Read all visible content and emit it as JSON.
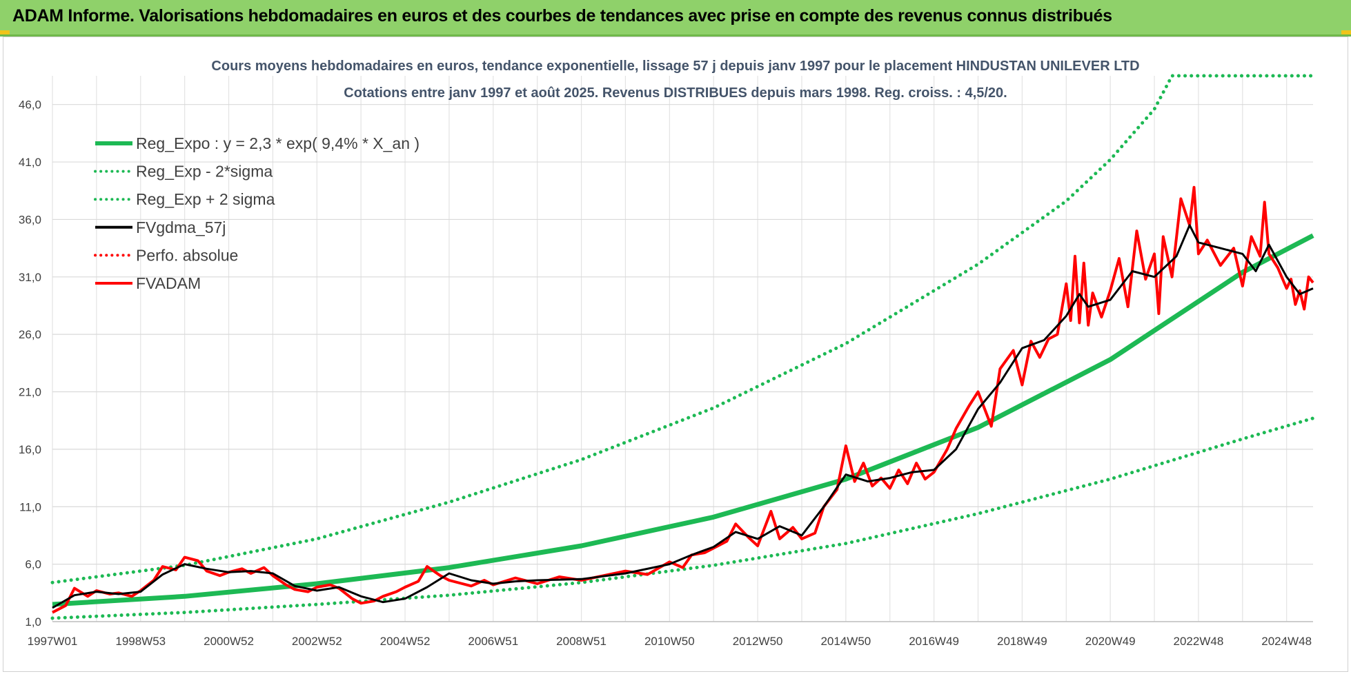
{
  "header": {
    "banner_title": "ADAM Informe. Valorisations hebdomadaires en euros et des courbes de tendances avec prise en compte des revenus connus distribués"
  },
  "chart_data": {
    "type": "line",
    "title": "Cours moyens hebdomadaires en euros, tendance exponentielle, lissage 57 j depuis janv 1997 pour le placement HINDUSTAN UNILEVER LTD",
    "subtitle": "Cotations entre janv 1997 et août 2025. Revenus DISTRIBUES depuis mars 1998. Reg. croiss. : 4,5/20.",
    "xlabel": "",
    "ylabel": "",
    "x_range": [
      1997.0,
      2025.6
    ],
    "ylim": [
      1.0,
      48.5
    ],
    "y_ticks": [
      "1,0",
      "6,0",
      "11,0",
      "16,0",
      "21,0",
      "26,0",
      "31,0",
      "36,0",
      "41,0",
      "46,0"
    ],
    "y_tick_values": [
      1,
      6,
      11,
      16,
      21,
      26,
      31,
      36,
      41,
      46
    ],
    "x_ticks": [
      {
        "label": "1997W01",
        "x": 1997.0
      },
      {
        "label": "1998W53",
        "x": 1999.0
      },
      {
        "label": "2000W52",
        "x": 2001.0
      },
      {
        "label": "2002W52",
        "x": 2003.0
      },
      {
        "label": "2004W52",
        "x": 2005.0
      },
      {
        "label": "2006W51",
        "x": 2007.0
      },
      {
        "label": "2008W51",
        "x": 2009.0
      },
      {
        "label": "2010W50",
        "x": 2011.0
      },
      {
        "label": "2012W50",
        "x": 2013.0
      },
      {
        "label": "2014W50",
        "x": 2015.0
      },
      {
        "label": "2016W49",
        "x": 2017.0
      },
      {
        "label": "2018W49",
        "x": 2019.0
      },
      {
        "label": "2020W49",
        "x": 2021.0
      },
      {
        "label": "2022W48",
        "x": 2023.0
      },
      {
        "label": "2024W48",
        "x": 2025.0
      }
    ],
    "grid": true,
    "legend_position": "top-left",
    "series": [
      {
        "name": "Reg_Expo : y = 2,3 * exp( 9,4% *  X_an )",
        "color": "#1db954",
        "style": "solid",
        "x": [
          1997.0,
          2000.0,
          2003.0,
          2006.0,
          2009.0,
          2012.0,
          2015.0,
          2018.0,
          2021.0,
          2024.0,
          2025.6
        ],
        "y": [
          2.5,
          3.2,
          4.3,
          5.7,
          7.6,
          10.1,
          13.4,
          17.9,
          23.8,
          31.4,
          34.6
        ]
      },
      {
        "name": "Reg_Exp - 2*sigma",
        "color": "#1db954",
        "style": "dotted",
        "x": [
          1997.0,
          2000.0,
          2003.0,
          2006.0,
          2009.0,
          2012.0,
          2015.0,
          2018.0,
          2021.0,
          2024.0,
          2025.6
        ],
        "y": [
          1.3,
          1.8,
          2.5,
          3.3,
          4.4,
          5.9,
          7.8,
          10.4,
          13.4,
          16.9,
          18.7
        ]
      },
      {
        "name": "Reg_Exp + 2 sigma",
        "color": "#1db954",
        "style": "dotted",
        "x": [
          1997.0,
          2000.0,
          2003.0,
          2006.0,
          2009.0,
          2012.0,
          2015.0,
          2018.0,
          2020.0,
          2021.0,
          2022.0,
          2022.4,
          2023.0,
          2024.0,
          2025.6
        ],
        "y": [
          4.4,
          5.9,
          8.2,
          11.4,
          15.1,
          19.6,
          25.2,
          32.1,
          37.6,
          41.2,
          45.6,
          48.5,
          48.5,
          48.5,
          48.5
        ]
      },
      {
        "name": "FVgdma_57j",
        "color": "#000000",
        "style": "solid",
        "x": [
          1997.0,
          1997.5,
          1998.0,
          1998.5,
          1999.0,
          1999.5,
          2000.0,
          2000.5,
          2001.0,
          2001.5,
          2002.0,
          2002.5,
          2003.0,
          2003.5,
          2004.0,
          2004.5,
          2005.0,
          2005.5,
          2006.0,
          2006.5,
          2007.0,
          2007.5,
          2008.0,
          2009.0,
          2010.0,
          2011.0,
          2011.5,
          2012.0,
          2012.5,
          2013.0,
          2013.5,
          2014.0,
          2014.5,
          2015.0,
          2015.5,
          2016.0,
          2016.5,
          2017.0,
          2017.5,
          2018.0,
          2018.5,
          2019.0,
          2019.5,
          2020.0,
          2020.3,
          2020.5,
          2021.0,
          2021.5,
          2022.0,
          2022.5,
          2022.8,
          2023.0,
          2023.5,
          2024.0,
          2024.3,
          2024.6,
          2025.0,
          2025.3,
          2025.6
        ],
        "y": [
          2.2,
          3.3,
          3.6,
          3.4,
          3.6,
          5.1,
          6.0,
          5.6,
          5.3,
          5.4,
          5.2,
          4.1,
          3.7,
          4.0,
          3.2,
          2.7,
          3.0,
          4.0,
          5.2,
          4.6,
          4.3,
          4.5,
          4.6,
          4.7,
          5.2,
          6.0,
          6.8,
          7.5,
          8.8,
          8.2,
          9.3,
          8.5,
          11.0,
          13.8,
          13.2,
          13.5,
          14.0,
          14.2,
          16.0,
          19.5,
          21.8,
          24.8,
          25.5,
          27.6,
          29.5,
          28.4,
          29.0,
          31.5,
          31.0,
          32.8,
          35.5,
          34.0,
          33.5,
          33.0,
          31.5,
          33.8,
          31.0,
          29.5,
          30.0
        ]
      },
      {
        "name": "Perfo. absolue",
        "color": "#ff0000",
        "style": "dotted",
        "x": [],
        "y": []
      },
      {
        "name": "FVADAM",
        "color": "#ff0000",
        "style": "solid",
        "x": [
          1997.0,
          1997.3,
          1997.5,
          1997.8,
          1998.0,
          1998.3,
          1998.5,
          1998.8,
          1999.0,
          1999.3,
          1999.5,
          1999.8,
          2000.0,
          2000.3,
          2000.5,
          2000.8,
          2001.0,
          2001.3,
          2001.5,
          2001.8,
          2002.0,
          2002.3,
          2002.5,
          2002.8,
          2003.0,
          2003.3,
          2003.5,
          2003.8,
          2004.0,
          2004.3,
          2004.5,
          2004.8,
          2005.0,
          2005.3,
          2005.5,
          2005.8,
          2006.0,
          2006.3,
          2006.5,
          2006.8,
          2007.0,
          2007.5,
          2008.0,
          2008.5,
          2009.0,
          2009.5,
          2010.0,
          2010.5,
          2011.0,
          2011.3,
          2011.5,
          2011.8,
          2012.0,
          2012.3,
          2012.5,
          2012.8,
          2013.0,
          2013.3,
          2013.5,
          2013.8,
          2014.0,
          2014.3,
          2014.5,
          2014.8,
          2015.0,
          2015.2,
          2015.4,
          2015.6,
          2015.8,
          2016.0,
          2016.2,
          2016.4,
          2016.6,
          2016.8,
          2017.0,
          2017.3,
          2017.5,
          2017.8,
          2018.0,
          2018.3,
          2018.5,
          2018.8,
          2019.0,
          2019.2,
          2019.4,
          2019.6,
          2019.8,
          2020.0,
          2020.1,
          2020.2,
          2020.3,
          2020.4,
          2020.5,
          2020.6,
          2020.8,
          2021.0,
          2021.2,
          2021.4,
          2021.6,
          2021.8,
          2022.0,
          2022.1,
          2022.2,
          2022.4,
          2022.6,
          2022.8,
          2022.9,
          2023.0,
          2023.2,
          2023.5,
          2023.8,
          2024.0,
          2024.2,
          2024.4,
          2024.5,
          2024.6,
          2024.8,
          2025.0,
          2025.1,
          2025.2,
          2025.3,
          2025.4,
          2025.5,
          2025.6
        ],
        "y": [
          1.8,
          2.4,
          3.9,
          3.2,
          3.7,
          3.4,
          3.5,
          3.2,
          3.7,
          4.6,
          5.8,
          5.5,
          6.6,
          6.3,
          5.4,
          5.0,
          5.3,
          5.6,
          5.2,
          5.7,
          5.0,
          4.2,
          3.8,
          3.6,
          4.0,
          4.2,
          3.9,
          3.0,
          2.6,
          2.8,
          3.2,
          3.6,
          4.0,
          4.5,
          5.8,
          5.0,
          4.6,
          4.3,
          4.1,
          4.6,
          4.2,
          4.8,
          4.3,
          4.9,
          4.6,
          5.0,
          5.4,
          5.1,
          6.2,
          5.7,
          6.8,
          7.0,
          7.4,
          8.0,
          9.5,
          8.3,
          7.6,
          10.6,
          8.2,
          9.2,
          8.2,
          8.7,
          11.0,
          12.5,
          16.3,
          13.2,
          14.8,
          12.8,
          13.5,
          12.6,
          14.2,
          13.0,
          14.8,
          13.4,
          14.0,
          16.0,
          17.8,
          19.8,
          21.0,
          18.0,
          23.0,
          24.6,
          21.6,
          25.4,
          24.0,
          25.6,
          26.0,
          30.4,
          27.2,
          32.8,
          27.0,
          32.2,
          26.8,
          29.6,
          27.5,
          29.8,
          32.6,
          28.4,
          35.0,
          30.8,
          33.0,
          27.8,
          34.5,
          31.0,
          37.8,
          35.5,
          38.8,
          33.0,
          34.2,
          32.0,
          33.5,
          30.2,
          34.5,
          32.8,
          37.5,
          33.0,
          31.8,
          30.0,
          30.8,
          28.6,
          29.8,
          28.2,
          31.0,
          30.5
        ]
      }
    ]
  }
}
